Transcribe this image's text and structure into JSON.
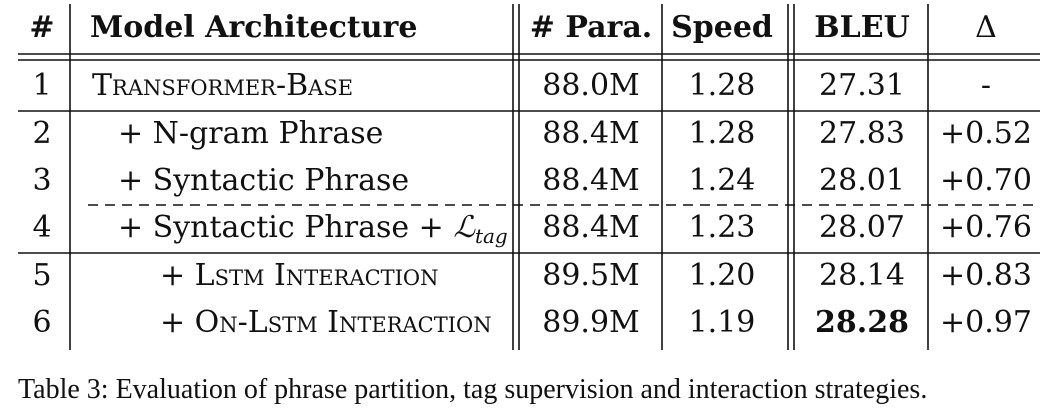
{
  "table": {
    "headers": [
      "#",
      "Model Architecture",
      "# Para.",
      "Speed",
      "BLEU",
      "Δ"
    ],
    "rows": [
      {
        "num": "1",
        "model": "Transformer-Base",
        "params": "88.0M",
        "speed": "1.28",
        "bleu": "27.31",
        "delta": "-"
      },
      {
        "num": "2",
        "model": "+ N-gram Phrase",
        "params": "88.4M",
        "speed": "1.28",
        "bleu": "27.83",
        "delta": "+0.52"
      },
      {
        "num": "3",
        "model": "+ Syntactic Phrase",
        "params": "88.4M",
        "speed": "1.24",
        "bleu": "28.01",
        "delta": "+0.70"
      },
      {
        "num": "4",
        "model": "+ Syntactic Phrase + ",
        "model_math": "ℒ",
        "model_math_sub": "tag",
        "params": "88.4M",
        "speed": "1.23",
        "bleu": "28.07",
        "delta": "+0.76"
      },
      {
        "num": "5",
        "model": "+ Lstm Interaction",
        "params": "89.5M",
        "speed": "1.20",
        "bleu": "28.14",
        "delta": "+0.83"
      },
      {
        "num": "6",
        "model": "+ On-Lstm Interaction",
        "params": "89.9M",
        "speed": "1.19",
        "bleu": "28.28",
        "delta": "+0.97",
        "bleu_bold": true
      }
    ]
  },
  "caption": "Table 3: Evaluation of phrase partition, tag supervision and interaction strategies."
}
